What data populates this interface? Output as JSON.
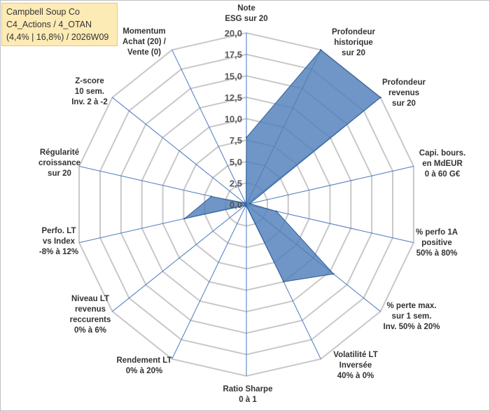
{
  "title_lines": [
    "Campbell Soup Co",
    "C4_Actions / 4_OTAN",
    "(4,4% | 16,8%) / 2026W09"
  ],
  "chart_data": {
    "type": "radar",
    "title": "Campbell Soup Co",
    "rmin": 0,
    "rmax": 20,
    "ticks": [
      "0,0",
      "2,5",
      "5,0",
      "7,5",
      "10,0",
      "12,5",
      "15,0",
      "17,5",
      "20,0"
    ],
    "tick_values": [
      0,
      2.5,
      5,
      7.5,
      10,
      12.5,
      15,
      17.5,
      20
    ],
    "axes": [
      {
        "label": [
          "Note",
          "ESG sur 20"
        ],
        "value": 7.8
      },
      {
        "label": [
          "Profondeur",
          "historique",
          "sur 20"
        ],
        "value": 20
      },
      {
        "label": [
          "Profondeur",
          "revenus",
          "sur 20"
        ],
        "value": 20
      },
      {
        "label": [
          "Capi. bours.",
          "en MdEUR",
          "0 à 60 G€"
        ],
        "value": 0.4
      },
      {
        "label": [
          "% perfo 1A",
          "positive",
          "50% à 80%"
        ],
        "value": 3.6
      },
      {
        "label": [
          "% perte max.",
          "sur 1 sem.",
          "Inv. 50% à 20%"
        ],
        "value": 13.0
      },
      {
        "label": [
          "Volatilité LT",
          "Inversée",
          "40% à 0%"
        ],
        "value": 10.0
      },
      {
        "label": [
          "Ratio Sharpe",
          "0 à 1"
        ],
        "value": 0.2
      },
      {
        "label": [
          "Rendement LT",
          "0% à 20%"
        ],
        "value": 0.2
      },
      {
        "label": [
          "Niveau LT",
          "revenus",
          "reccurents",
          "0% à 6%"
        ],
        "value": 0.2
      },
      {
        "label": [
          "Perfo. LT",
          "vs Index",
          "-8% à 12%"
        ],
        "value": 7.4
      },
      {
        "label": [
          "Régularité",
          "croissance",
          "sur 20"
        ],
        "value": 4.2
      },
      {
        "label": [
          "Z-score",
          "10 sem.",
          "Inv. 2 à -2"
        ],
        "value": 0.3
      },
      {
        "label": [
          "Momentum",
          "Achat (20) /",
          "Vente (0)"
        ],
        "value": 0.1
      }
    ],
    "colors": {
      "fill": "#4f7fba",
      "stroke": "#2f5d96",
      "grid": "#c8c8c8",
      "spoke": "#4a78c2"
    }
  }
}
